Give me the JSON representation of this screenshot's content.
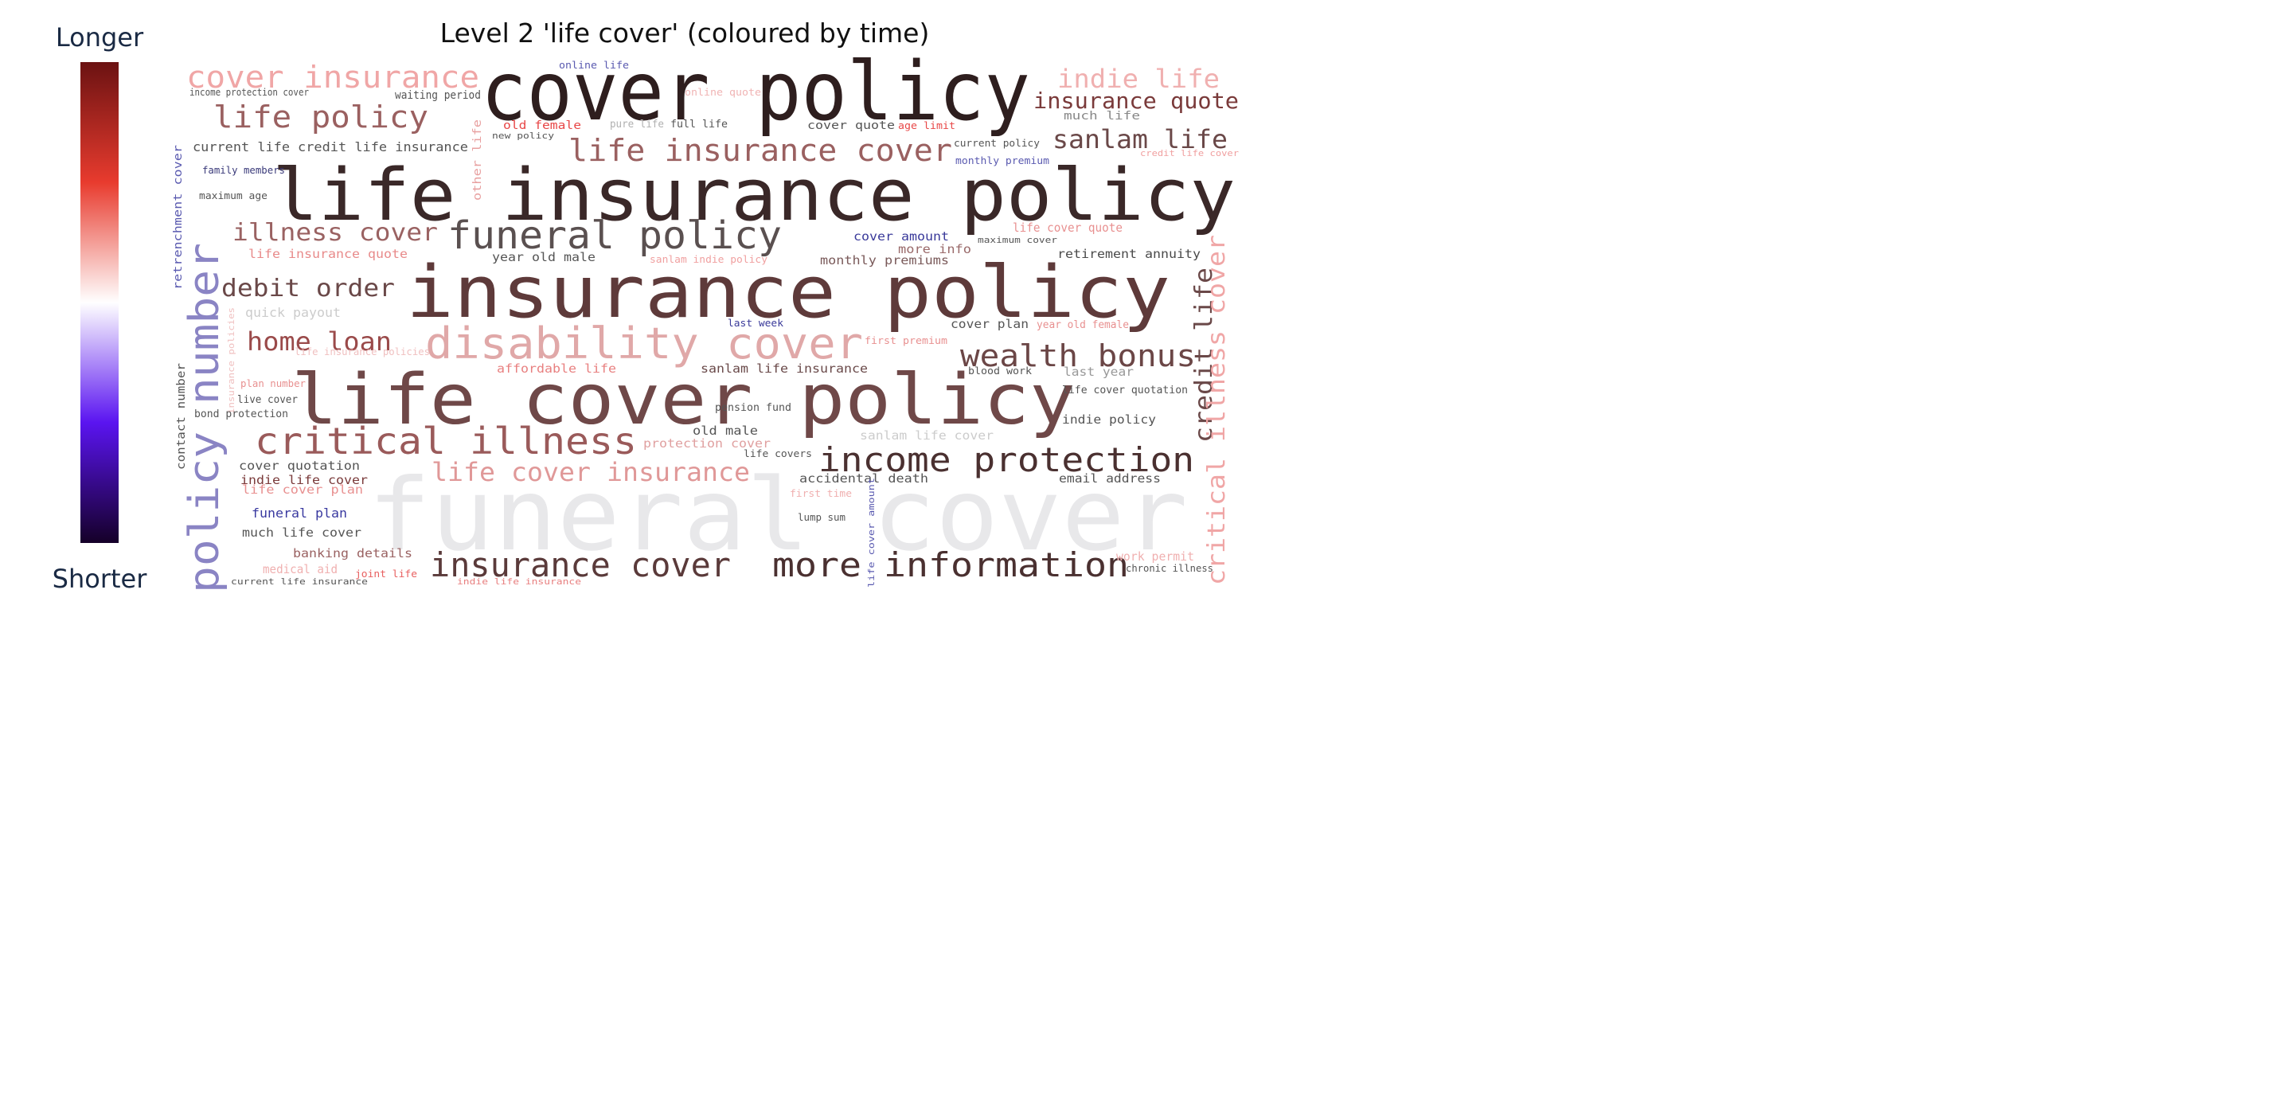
{
  "title": "Level 2 'life cover' (coloured by time)",
  "colorbar": {
    "top_label": "Longer",
    "bottom_label": "Shorter",
    "stops": [
      "#6b1212",
      "#e83b2e",
      "#ffffff",
      "#5a14f0",
      "#150028"
    ]
  },
  "words": [
    {
      "text": "funeral cover",
      "color": "#e8e8ea"
    },
    {
      "text": "cover policy",
      "color": "#2e1e1e"
    },
    {
      "text": "life insurance policy",
      "color": "#3a2828"
    },
    {
      "text": "insurance policy",
      "color": "#5e3a3a"
    },
    {
      "text": "life cover policy",
      "color": "#6f4848"
    },
    {
      "text": "funeral policy",
      "color": "#5a5050"
    },
    {
      "text": "disability cover",
      "color": "#e0a8a8"
    },
    {
      "text": "critical illness",
      "color": "#9a5a5a"
    },
    {
      "text": "income protection",
      "color": "#4a3030"
    },
    {
      "text": "insurance cover",
      "color": "#5a3a3a"
    },
    {
      "text": "more information",
      "color": "#4a3030"
    },
    {
      "text": "policy number",
      "color": "#8a84c4"
    },
    {
      "text": "wealth bonus",
      "color": "#6b4646"
    },
    {
      "text": "life insurance cover",
      "color": "#9a6060"
    },
    {
      "text": "cover insurance",
      "color": "#f0a6a6"
    },
    {
      "text": "life policy",
      "color": "#9a6060"
    },
    {
      "text": "indie life",
      "color": "#f0b0b0"
    },
    {
      "text": "insurance quote",
      "color": "#7a3a3a"
    },
    {
      "text": "sanlam life",
      "color": "#6a4848"
    },
    {
      "text": "life cover insurance",
      "color": "#e09898"
    },
    {
      "text": "illness cover",
      "color": "#9a6262"
    },
    {
      "text": "debit order",
      "color": "#6a4848"
    },
    {
      "text": "home loan",
      "color": "#9a4a4a"
    },
    {
      "text": "credit life",
      "color": "#6a4848"
    },
    {
      "text": "critical illness cover",
      "color": "#f0a6a6"
    },
    {
      "text": "income protection cover",
      "color": "#555555"
    },
    {
      "text": "waiting period",
      "color": "#555555"
    },
    {
      "text": "online life",
      "color": "#5a5ab0"
    },
    {
      "text": "online quote",
      "color": "#f0b4b4"
    },
    {
      "text": "old female",
      "color": "#e84848"
    },
    {
      "text": "pure life",
      "color": "#b0b0b0"
    },
    {
      "text": "full life",
      "color": "#555555"
    },
    {
      "text": "cover quote",
      "color": "#555555"
    },
    {
      "text": "age limit",
      "color": "#e84848"
    },
    {
      "text": "much life",
      "color": "#888888"
    },
    {
      "text": "new policy",
      "color": "#555555"
    },
    {
      "text": "other life",
      "color": "#e8a0a0"
    },
    {
      "text": "current life",
      "color": "#555555"
    },
    {
      "text": "credit life insurance",
      "color": "#555555"
    },
    {
      "text": "current policy",
      "color": "#555555"
    },
    {
      "text": "monthly premium",
      "color": "#5a5ab0"
    },
    {
      "text": "credit life cover",
      "color": "#f0a0a0"
    },
    {
      "text": "family members",
      "color": "#3a3a7a"
    },
    {
      "text": "retrenchment cover",
      "color": "#5a5ab0"
    },
    {
      "text": "maximum age",
      "color": "#555555"
    },
    {
      "text": "cover amount",
      "color": "#3a3a9a"
    },
    {
      "text": "maximum cover",
      "color": "#555555"
    },
    {
      "text": "life cover quote",
      "color": "#e89090"
    },
    {
      "text": "more info",
      "color": "#9a6a6a"
    },
    {
      "text": "life insurance quote",
      "color": "#e88a8a"
    },
    {
      "text": "year old male",
      "color": "#555555"
    },
    {
      "text": "sanlam indie policy",
      "color": "#f0a0a0"
    },
    {
      "text": "monthly premiums",
      "color": "#7a5a5a"
    },
    {
      "text": "retirement annuity",
      "color": "#4a4a4a"
    },
    {
      "text": "quick payout",
      "color": "#cccccc"
    },
    {
      "text": "last week",
      "color": "#3a3a9a"
    },
    {
      "text": "cover plan",
      "color": "#555555"
    },
    {
      "text": "year old female",
      "color": "#e89090"
    },
    {
      "text": "life insurance policies",
      "color": "#f0c0c0"
    },
    {
      "text": "first premium",
      "color": "#e89090"
    },
    {
      "text": "insurance policies",
      "color": "#f0c0c0"
    },
    {
      "text": "affordable life",
      "color": "#e88080"
    },
    {
      "text": "sanlam life insurance",
      "color": "#6a4a4a"
    },
    {
      "text": "blood work",
      "color": "#555555"
    },
    {
      "text": "last year",
      "color": "#999999"
    },
    {
      "text": "contact number",
      "color": "#555555"
    },
    {
      "text": "plan number",
      "color": "#e89090"
    },
    {
      "text": "live cover",
      "color": "#555555"
    },
    {
      "text": "bond protection",
      "color": "#555555"
    },
    {
      "text": "pension fund",
      "color": "#555555"
    },
    {
      "text": "life cover quotation",
      "color": "#555555"
    },
    {
      "text": "indie policy",
      "color": "#555555"
    },
    {
      "text": "old male",
      "color": "#555555"
    },
    {
      "text": "sanlam life cover",
      "color": "#cccccc"
    },
    {
      "text": "protection cover",
      "color": "#e0a0a0"
    },
    {
      "text": "life covers",
      "color": "#555555"
    },
    {
      "text": "cover quotation",
      "color": "#555555"
    },
    {
      "text": "indie life cover",
      "color": "#7a3a3a"
    },
    {
      "text": "life cover plan",
      "color": "#e89090"
    },
    {
      "text": "accidental death",
      "color": "#555555"
    },
    {
      "text": "email address",
      "color": "#555555"
    },
    {
      "text": "first time",
      "color": "#f0b0b0"
    },
    {
      "text": "funeral plan",
      "color": "#3a3aa0"
    },
    {
      "text": "lump sum",
      "color": "#555555"
    },
    {
      "text": "life cover amount",
      "color": "#5a5ab0"
    },
    {
      "text": "much life cover",
      "color": "#555555"
    },
    {
      "text": "banking details",
      "color": "#9a6262"
    },
    {
      "text": "medical aid",
      "color": "#f0b0b0"
    },
    {
      "text": "joint life",
      "color": "#e86060"
    },
    {
      "text": "current life insurance",
      "color": "#555555"
    },
    {
      "text": "indie life insurance",
      "color": "#e88080"
    },
    {
      "text": "work permit",
      "color": "#f0b0b0"
    },
    {
      "text": "chronic illness",
      "color": "#555555"
    }
  ]
}
